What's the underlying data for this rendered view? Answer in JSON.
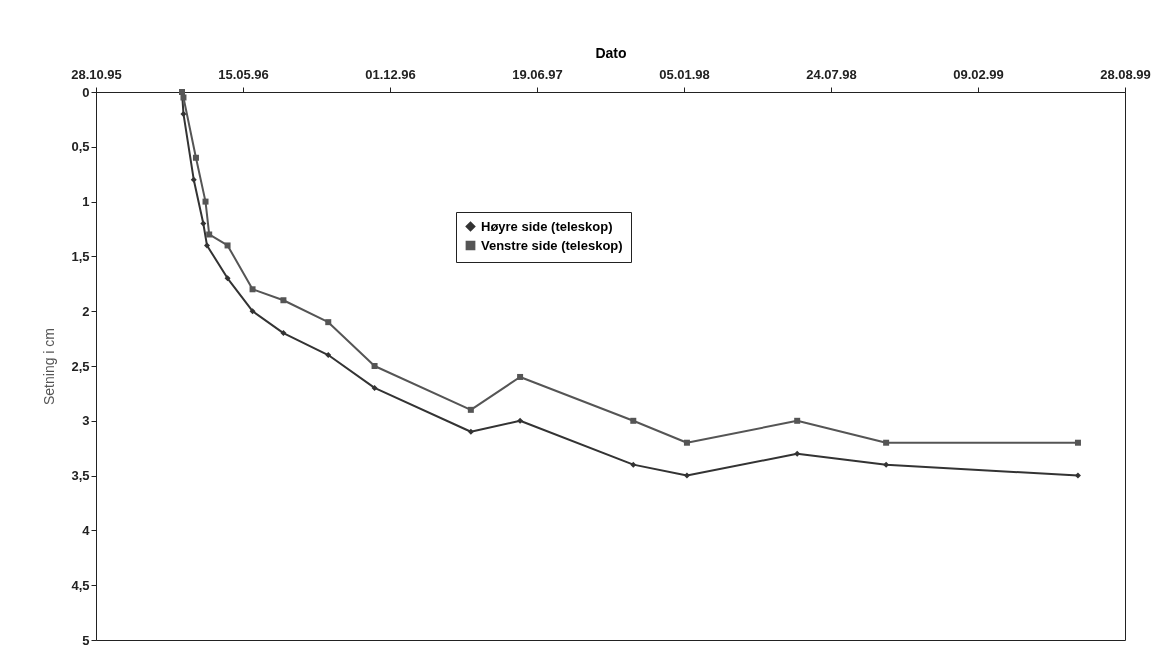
{
  "chart_data": {
    "type": "line",
    "xlabel": "Dato",
    "ylabel": "Setning i cm",
    "xlim": [
      "1995-10-28",
      "1999-08-28"
    ],
    "xticks": [
      {
        "value": "1995-10-28",
        "label": "28.10.95"
      },
      {
        "value": "1996-05-15",
        "label": "15.05.96"
      },
      {
        "value": "1996-12-01",
        "label": "01.12.96"
      },
      {
        "value": "1997-06-19",
        "label": "19.06.97"
      },
      {
        "value": "1998-01-05",
        "label": "05.01.98"
      },
      {
        "value": "1998-07-24",
        "label": "24.07.98"
      },
      {
        "value": "1999-02-09",
        "label": "09.02.99"
      },
      {
        "value": "1999-08-28",
        "label": "28.08.99"
      }
    ],
    "ylim": [
      5,
      0
    ],
    "yticks": [
      {
        "value": 0,
        "label": "0"
      },
      {
        "value": 0.5,
        "label": "0,5"
      },
      {
        "value": 1,
        "label": "1"
      },
      {
        "value": 1.5,
        "label": "1,5"
      },
      {
        "value": 2,
        "label": "2"
      },
      {
        "value": 2.5,
        "label": "2,5"
      },
      {
        "value": 3,
        "label": "3"
      },
      {
        "value": 3.5,
        "label": "3,5"
      },
      {
        "value": 4,
        "label": "4"
      },
      {
        "value": 4.5,
        "label": "4,5"
      },
      {
        "value": 5,
        "label": "5"
      }
    ],
    "grid": false,
    "legend": "top",
    "series": [
      {
        "name": "Høyre side (teleskop)",
        "color": "#333333",
        "marker": "diamond",
        "x": [
          "1996-02-22",
          "1996-02-24",
          "1996-03-09",
          "1996-03-22",
          "1996-03-27",
          "1996-04-24",
          "1996-05-28",
          "1996-07-09",
          "1996-09-08",
          "1996-11-10",
          "1997-03-21",
          "1997-05-27",
          "1997-10-28",
          "1998-01-09",
          "1998-06-08",
          "1998-10-07",
          "1999-06-25"
        ],
        "values": [
          0,
          0.2,
          0.8,
          1.2,
          1.4,
          1.7,
          2.0,
          2.2,
          2.4,
          2.7,
          3.1,
          3.0,
          3.4,
          3.5,
          3.3,
          3.4,
          3.5
        ]
      },
      {
        "name": "Venstre side (teleskop)",
        "color": "#555555",
        "marker": "square",
        "x": [
          "1996-02-22",
          "1996-02-24",
          "1996-03-12",
          "1996-03-25",
          "1996-03-30",
          "1996-04-24",
          "1996-05-28",
          "1996-07-09",
          "1996-09-08",
          "1996-11-10",
          "1997-03-21",
          "1997-05-27",
          "1997-10-28",
          "1998-01-09",
          "1998-06-08",
          "1998-10-07",
          "1999-06-25"
        ],
        "values": [
          0,
          0.05,
          0.6,
          1.0,
          1.3,
          1.4,
          1.8,
          1.9,
          2.1,
          2.5,
          2.9,
          2.6,
          3.0,
          3.2,
          3.0,
          3.2,
          3.2
        ]
      }
    ]
  }
}
